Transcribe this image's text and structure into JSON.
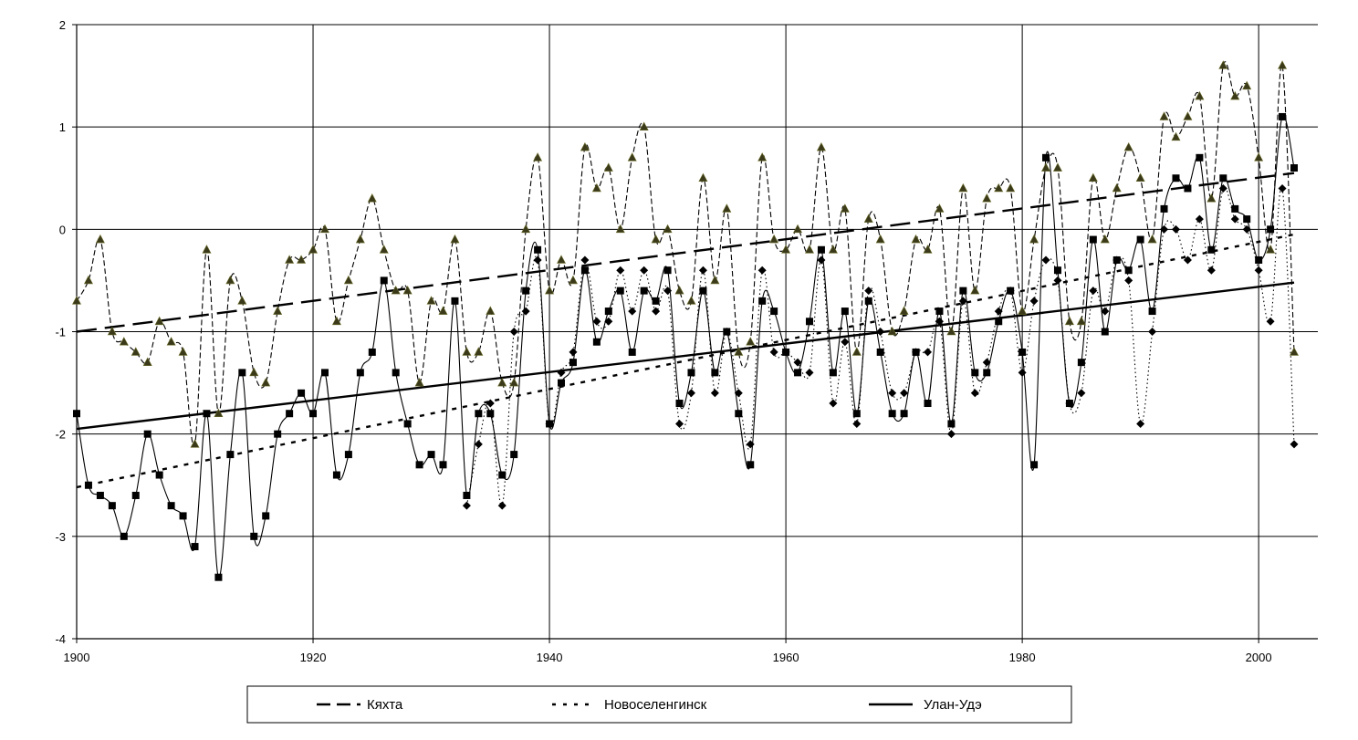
{
  "chart_data": {
    "type": "line",
    "xlim": [
      1900,
      2005
    ],
    "ylim": [
      -4,
      2
    ],
    "xticks": [
      1900,
      1920,
      1940,
      1960,
      1980,
      2000
    ],
    "yticks": [
      -4,
      -3,
      -2,
      -1,
      0,
      1,
      2
    ],
    "grid": true,
    "legend_position": "bottom",
    "series": [
      {
        "name": "Кяхта",
        "line_style": "dashed",
        "trend_style": "long-dash",
        "marker": "triangle",
        "marker_color": "#3a3a1a",
        "trend": [
          [
            1900,
            -1.0
          ],
          [
            2003,
            0.55
          ]
        ],
        "x": [
          1900,
          1901,
          1902,
          1903,
          1904,
          1905,
          1906,
          1907,
          1908,
          1909,
          1910,
          1911,
          1912,
          1913,
          1914,
          1915,
          1916,
          1917,
          1918,
          1919,
          1920,
          1921,
          1922,
          1923,
          1924,
          1925,
          1926,
          1927,
          1928,
          1929,
          1930,
          1931,
          1932,
          1933,
          1934,
          1935,
          1936,
          1937,
          1938,
          1939,
          1940,
          1941,
          1942,
          1943,
          1944,
          1945,
          1946,
          1947,
          1948,
          1949,
          1950,
          1951,
          1952,
          1953,
          1954,
          1955,
          1956,
          1957,
          1958,
          1959,
          1960,
          1961,
          1962,
          1963,
          1964,
          1965,
          1966,
          1967,
          1968,
          1969,
          1970,
          1971,
          1972,
          1973,
          1974,
          1975,
          1976,
          1977,
          1978,
          1979,
          1980,
          1981,
          1982,
          1983,
          1984,
          1985,
          1986,
          1987,
          1988,
          1989,
          1990,
          1991,
          1992,
          1993,
          1994,
          1995,
          1996,
          1997,
          1998,
          1999,
          2000,
          2001,
          2002,
          2003
        ],
        "y": [
          -0.7,
          -0.5,
          -0.1,
          -1.0,
          -1.1,
          -1.2,
          -1.3,
          -0.9,
          -1.1,
          -1.2,
          -2.1,
          -0.2,
          -1.8,
          -0.5,
          -0.7,
          -1.4,
          -1.5,
          -0.8,
          -0.3,
          -0.3,
          -0.2,
          0.0,
          -0.9,
          -0.5,
          -0.1,
          0.3,
          -0.2,
          -0.6,
          -0.6,
          -1.5,
          -0.7,
          -0.8,
          -0.1,
          -1.2,
          -1.2,
          -0.8,
          -1.5,
          -1.5,
          0.0,
          0.7,
          -0.6,
          -0.3,
          -0.5,
          0.8,
          0.4,
          0.6,
          0.0,
          0.7,
          1.0,
          -0.1,
          0.0,
          -0.6,
          -0.7,
          0.5,
          -0.5,
          0.2,
          -1.2,
          -1.1,
          0.7,
          -0.1,
          -0.2,
          0.0,
          -0.2,
          0.8,
          -0.2,
          0.2,
          -1.2,
          0.1,
          -0.1,
          -1.0,
          -0.8,
          -0.1,
          -0.2,
          0.2,
          -1.0,
          0.4,
          -0.6,
          0.3,
          0.4,
          0.4,
          -0.8,
          -0.1,
          0.6,
          0.6,
          -0.9,
          -0.9,
          0.5,
          -0.1,
          0.4,
          0.8,
          0.5,
          -0.1,
          1.1,
          0.9,
          1.1,
          1.3,
          0.3,
          1.6,
          1.3,
          1.4,
          0.7,
          -0.2,
          1.6,
          -1.2
        ]
      },
      {
        "name": "Новоселенгинск",
        "line_style": "dotted",
        "trend_style": "short-dash",
        "marker": "diamond",
        "marker_color": "#000000",
        "trend": [
          [
            1900,
            -2.52
          ],
          [
            2003,
            -0.05
          ]
        ],
        "x": [
          1933,
          1934,
          1935,
          1936,
          1937,
          1938,
          1939,
          1940,
          1941,
          1942,
          1943,
          1944,
          1945,
          1946,
          1947,
          1948,
          1949,
          1950,
          1951,
          1952,
          1953,
          1954,
          1955,
          1956,
          1957,
          1958,
          1959,
          1960,
          1961,
          1962,
          1963,
          1964,
          1965,
          1966,
          1967,
          1968,
          1969,
          1970,
          1971,
          1972,
          1973,
          1974,
          1975,
          1976,
          1977,
          1978,
          1979,
          1980,
          1981,
          1982,
          1983,
          1984,
          1985,
          1986,
          1987,
          1988,
          1989,
          1990,
          1991,
          1992,
          1993,
          1994,
          1995,
          1996,
          1997,
          1998,
          1999,
          2000,
          2001,
          2002,
          2003
        ],
        "y": [
          -2.7,
          -2.1,
          -1.7,
          -2.7,
          -1.0,
          -0.8,
          -0.3,
          -1.9,
          -1.4,
          -1.2,
          -0.3,
          -0.9,
          -0.9,
          -0.4,
          -0.8,
          -0.4,
          -0.8,
          -0.6,
          -1.9,
          -1.6,
          -0.4,
          -1.6,
          -1.0,
          -1.6,
          -2.1,
          -0.4,
          -1.2,
          -1.2,
          -1.3,
          -1.4,
          -0.3,
          -1.7,
          -1.1,
          -1.9,
          -0.6,
          -1.0,
          -1.6,
          -1.6,
          -1.2,
          -1.2,
          -0.9,
          -2.0,
          -0.7,
          -1.6,
          -1.3,
          -0.8,
          -0.6,
          -1.4,
          -0.7,
          -0.3,
          -0.5,
          -1.7,
          -1.6,
          -0.6,
          -0.8,
          -0.3,
          -0.5,
          -1.9,
          -1.0,
          0.0,
          0.0,
          -0.3,
          0.1,
          -0.4,
          0.4,
          0.1,
          0.0,
          -0.4,
          -0.9,
          0.4,
          -2.1
        ]
      },
      {
        "name": "Улан-Удэ",
        "line_style": "solid",
        "trend_style": "solid",
        "marker": "square",
        "marker_color": "#000000",
        "trend": [
          [
            1900,
            -1.95
          ],
          [
            2003,
            -0.52
          ]
        ],
        "x": [
          1900,
          1901,
          1902,
          1903,
          1904,
          1905,
          1906,
          1907,
          1908,
          1909,
          1910,
          1911,
          1912,
          1913,
          1914,
          1915,
          1916,
          1917,
          1918,
          1919,
          1920,
          1921,
          1922,
          1923,
          1924,
          1925,
          1926,
          1927,
          1928,
          1929,
          1930,
          1931,
          1932,
          1933,
          1934,
          1935,
          1936,
          1937,
          1938,
          1939,
          1940,
          1941,
          1942,
          1943,
          1944,
          1945,
          1946,
          1947,
          1948,
          1949,
          1950,
          1951,
          1952,
          1953,
          1954,
          1955,
          1956,
          1957,
          1958,
          1959,
          1960,
          1961,
          1962,
          1963,
          1964,
          1965,
          1966,
          1967,
          1968,
          1969,
          1970,
          1971,
          1972,
          1973,
          1974,
          1975,
          1976,
          1977,
          1978,
          1979,
          1980,
          1981,
          1982,
          1983,
          1984,
          1985,
          1986,
          1987,
          1988,
          1989,
          1990,
          1991,
          1992,
          1993,
          1994,
          1995,
          1996,
          1997,
          1998,
          1999,
          2000,
          2001,
          2002,
          2003
        ],
        "y": [
          -1.8,
          -2.5,
          -2.6,
          -2.7,
          -3.0,
          -2.6,
          -2.0,
          -2.4,
          -2.7,
          -2.8,
          -3.1,
          -1.8,
          -3.4,
          -2.2,
          -1.4,
          -3.0,
          -2.8,
          -2.0,
          -1.8,
          -1.6,
          -1.8,
          -1.4,
          -2.4,
          -2.2,
          -1.4,
          -1.2,
          -0.5,
          -1.4,
          -1.9,
          -2.3,
          -2.2,
          -2.3,
          -0.7,
          -2.6,
          -1.8,
          -1.8,
          -2.4,
          -2.2,
          -0.6,
          -0.2,
          -1.9,
          -1.5,
          -1.3,
          -0.4,
          -1.1,
          -0.8,
          -0.6,
          -1.2,
          -0.6,
          -0.7,
          -0.4,
          -1.7,
          -1.4,
          -0.6,
          -1.4,
          -1.0,
          -1.8,
          -2.3,
          -0.7,
          -0.8,
          -1.2,
          -1.4,
          -0.9,
          -0.2,
          -1.4,
          -0.8,
          -1.8,
          -0.7,
          -1.2,
          -1.8,
          -1.8,
          -1.2,
          -1.7,
          -0.8,
          -1.9,
          -0.6,
          -1.4,
          -1.4,
          -0.9,
          -0.6,
          -1.2,
          -2.3,
          0.7,
          -0.4,
          -1.7,
          -1.3,
          -0.1,
          -1.0,
          -0.3,
          -0.4,
          -0.1,
          -0.8,
          0.2,
          0.5,
          0.4,
          0.7,
          -0.2,
          0.5,
          0.2,
          0.1,
          -0.3,
          0.0,
          1.1,
          0.6
        ]
      }
    ]
  }
}
